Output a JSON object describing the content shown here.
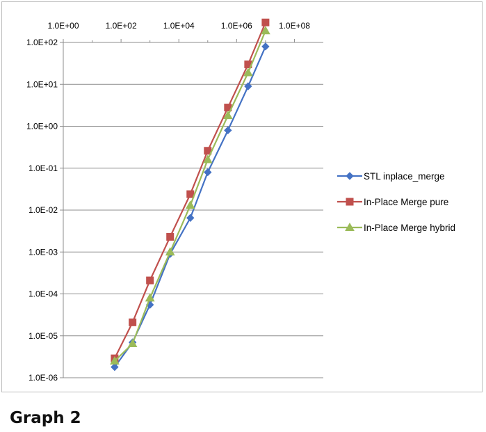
{
  "caption": "Graph 2",
  "chart_data": {
    "type": "line",
    "x_scale": "log",
    "y_scale": "log",
    "xlim": [
      1,
      1000000000.0
    ],
    "ylim": [
      1e-06,
      100
    ],
    "x_tick_labels": [
      "1.0E+00",
      "1.0E+02",
      "1.0E+04",
      "1.0E+06",
      "1.0E+08"
    ],
    "y_tick_labels": [
      "1.0E+02",
      "1.0E+01",
      "1.0E+00",
      "1.0E-01",
      "1.0E-02",
      "1.0E-03",
      "1.0E-04",
      "1.0E-05",
      "1.0E-06"
    ],
    "x_axis_position": "top",
    "grid": "horizontal",
    "legend_position": "right",
    "x": [
      60,
      250,
      1000,
      5000,
      25000,
      100000,
      500000,
      2500000,
      10000000
    ],
    "series": [
      {
        "name": "STL inplace_merge",
        "color": "#4472c4",
        "marker": "diamond",
        "values": [
          1.8e-06,
          7e-06,
          5.5e-05,
          0.0009,
          0.0065,
          0.08,
          0.8,
          9,
          80
        ]
      },
      {
        "name": "In-Place Merge pure",
        "color": "#c0504d",
        "marker": "square",
        "values": [
          2.9e-06,
          2.1e-05,
          0.00021,
          0.0023,
          0.024,
          0.26,
          2.8,
          30,
          300
        ]
      },
      {
        "name": "In-Place Merge hybrid",
        "color": "#9bbb59",
        "marker": "triangle",
        "values": [
          2.5e-06,
          6.5e-06,
          8e-05,
          0.001,
          0.013,
          0.16,
          1.8,
          19,
          190
        ]
      }
    ]
  }
}
